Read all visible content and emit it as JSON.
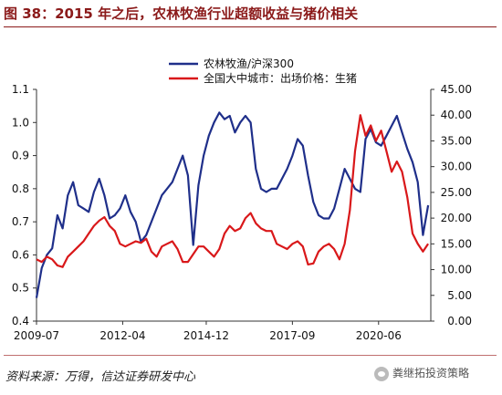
{
  "title": "图 38：2015 年之后，农林牧渔行业超额收益与猪价相关",
  "source": "资料来源：万得，信达证券研发中心",
  "watermark": "粪继拓投资策略",
  "chart_data": {
    "type": "line",
    "x_ticks": [
      "2009-07",
      "2012-04",
      "2014-12",
      "2017-09",
      "2020-06"
    ],
    "x_range": [
      "2009-07",
      "2022-02"
    ],
    "y_left": {
      "range": [
        0.4,
        1.1
      ],
      "ticks": [
        "0.4",
        "0.5",
        "0.6",
        "0.7",
        "0.8",
        "0.9",
        "1.0",
        "1.1"
      ]
    },
    "y_right": {
      "range": [
        0,
        45
      ],
      "ticks": [
        "0.00",
        "5.00",
        "10.00",
        "15.00",
        "20.00",
        "25.00",
        "30.00",
        "35.00",
        "40.00",
        "45.00"
      ]
    },
    "legend_position": "top-center",
    "grid": false,
    "series": [
      {
        "name": "农林牧渔/沪深300",
        "axis": "left",
        "color": "#1f2f8a",
        "x": [
          "2009-07",
          "2009-09",
          "2009-11",
          "2010-01",
          "2010-03",
          "2010-05",
          "2010-07",
          "2010-09",
          "2010-11",
          "2011-01",
          "2011-03",
          "2011-05",
          "2011-07",
          "2011-09",
          "2011-11",
          "2012-01",
          "2012-03",
          "2012-05",
          "2012-07",
          "2012-09",
          "2012-11",
          "2013-01",
          "2013-03",
          "2013-05",
          "2013-07",
          "2013-09",
          "2013-11",
          "2014-01",
          "2014-03",
          "2014-05",
          "2014-07",
          "2014-09",
          "2014-11",
          "2015-01",
          "2015-03",
          "2015-05",
          "2015-07",
          "2015-09",
          "2015-11",
          "2016-01",
          "2016-03",
          "2016-05",
          "2016-07",
          "2016-09",
          "2016-11",
          "2017-01",
          "2017-03",
          "2017-05",
          "2017-07",
          "2017-09",
          "2017-11",
          "2018-01",
          "2018-03",
          "2018-05",
          "2018-07",
          "2018-09",
          "2018-11",
          "2019-01",
          "2019-03",
          "2019-05",
          "2019-07",
          "2019-09",
          "2019-11",
          "2020-01",
          "2020-03",
          "2020-05",
          "2020-07",
          "2020-09",
          "2020-11",
          "2021-01",
          "2021-03",
          "2021-05",
          "2021-07",
          "2021-09",
          "2021-11",
          "2022-01"
        ],
        "y": [
          0.47,
          0.56,
          0.6,
          0.62,
          0.72,
          0.68,
          0.78,
          0.82,
          0.75,
          0.74,
          0.73,
          0.79,
          0.83,
          0.78,
          0.71,
          0.72,
          0.74,
          0.78,
          0.73,
          0.7,
          0.64,
          0.66,
          0.7,
          0.74,
          0.78,
          0.8,
          0.82,
          0.86,
          0.9,
          0.84,
          0.63,
          0.81,
          0.9,
          0.96,
          1.0,
          1.03,
          1.01,
          1.02,
          0.97,
          1.0,
          1.02,
          1.0,
          0.86,
          0.8,
          0.79,
          0.8,
          0.8,
          0.83,
          0.86,
          0.9,
          0.95,
          0.93,
          0.84,
          0.76,
          0.72,
          0.71,
          0.71,
          0.74,
          0.8,
          0.86,
          0.83,
          0.8,
          0.79,
          0.95,
          0.98,
          0.94,
          0.93,
          0.96,
          0.99,
          1.02,
          0.97,
          0.92,
          0.88,
          0.82,
          0.66,
          0.75
        ]
      },
      {
        "name": "全国大中城市：出场价格：生猪",
        "axis": "right",
        "color": "#d9181a",
        "x": [
          "2009-07",
          "2009-09",
          "2009-11",
          "2010-01",
          "2010-03",
          "2010-05",
          "2010-07",
          "2010-09",
          "2010-11",
          "2011-01",
          "2011-03",
          "2011-05",
          "2011-07",
          "2011-09",
          "2011-11",
          "2012-01",
          "2012-03",
          "2012-05",
          "2012-07",
          "2012-09",
          "2012-11",
          "2013-01",
          "2013-03",
          "2013-05",
          "2013-07",
          "2013-09",
          "2013-11",
          "2014-01",
          "2014-03",
          "2014-05",
          "2014-07",
          "2014-09",
          "2014-11",
          "2015-01",
          "2015-03",
          "2015-05",
          "2015-07",
          "2015-09",
          "2015-11",
          "2016-01",
          "2016-03",
          "2016-05",
          "2016-07",
          "2016-09",
          "2016-11",
          "2017-01",
          "2017-03",
          "2017-05",
          "2017-07",
          "2017-09",
          "2017-11",
          "2018-01",
          "2018-03",
          "2018-05",
          "2018-07",
          "2018-09",
          "2018-11",
          "2019-01",
          "2019-03",
          "2019-05",
          "2019-07",
          "2019-09",
          "2019-11",
          "2020-01",
          "2020-03",
          "2020-05",
          "2020-07",
          "2020-09",
          "2020-11",
          "2021-01",
          "2021-03",
          "2021-05",
          "2021-07",
          "2021-09",
          "2021-11",
          "2022-01"
        ],
        "y": [
          12,
          11.5,
          12.5,
          12,
          10.8,
          10.5,
          12.5,
          13.5,
          14.5,
          15.5,
          17,
          18.5,
          19.5,
          20.2,
          18.5,
          17.5,
          15,
          14.5,
          15,
          15.5,
          15.2,
          16,
          13.5,
          12.5,
          14.5,
          15,
          15.5,
          14,
          11.5,
          11.5,
          13,
          14.5,
          14.5,
          13.5,
          12.5,
          14,
          17,
          18.5,
          17.5,
          18,
          20,
          21,
          19,
          18,
          17.5,
          17.5,
          15,
          14.5,
          14,
          15,
          15.5,
          14.5,
          11,
          11.2,
          13.5,
          14.5,
          15,
          14,
          12,
          15,
          21.5,
          33,
          40,
          36,
          38,
          35,
          37,
          33,
          29,
          31,
          29,
          24,
          17,
          15,
          13.5,
          15
        ]
      }
    ]
  }
}
